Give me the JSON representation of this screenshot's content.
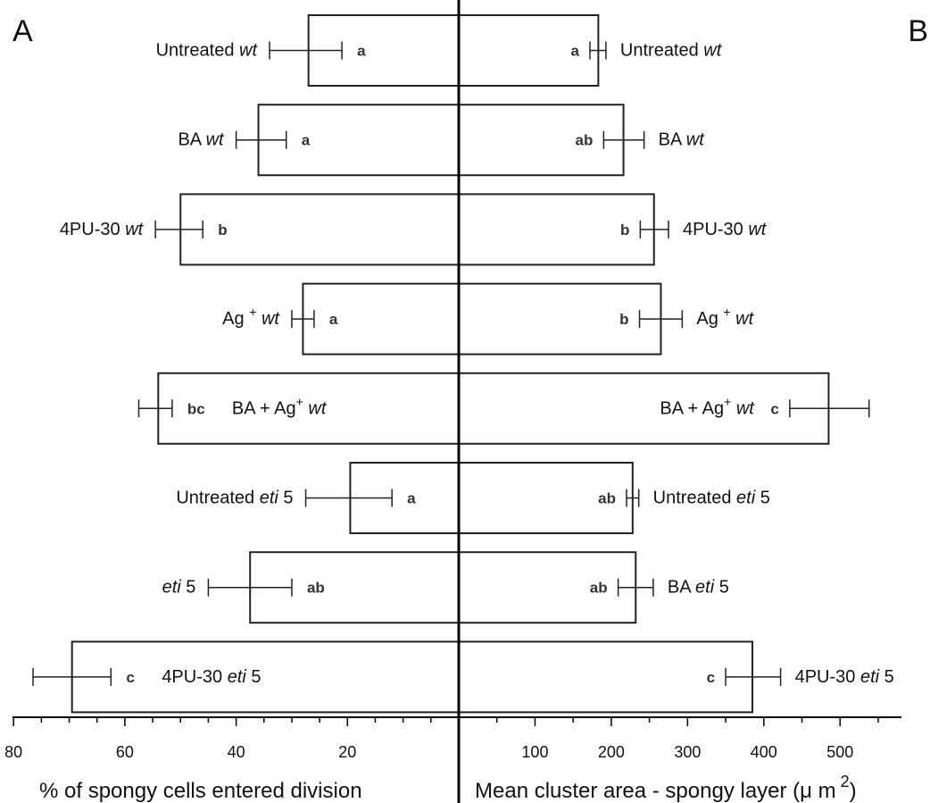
{
  "panels": {
    "left_letter": "A",
    "right_letter": "B"
  },
  "chart_data": [
    {
      "type": "bar",
      "orientation": "horizontal",
      "panel": "A",
      "xlabel": "% of spongy cells entered division",
      "xlim": [
        0,
        80
      ],
      "x_reversed": true,
      "xticks": [
        "80",
        "60",
        "40",
        "20"
      ],
      "categories": [
        {
          "text": "Untreated ",
          "italic": "wt",
          "suffix": ""
        },
        {
          "text": "BA ",
          "italic": "wt",
          "suffix": ""
        },
        {
          "text": "4PU-30 ",
          "italic": "wt",
          "suffix": ""
        },
        {
          "text": "Ag ",
          "sup": "+",
          "italic": "wt",
          "suffix": ""
        },
        {
          "text": "BA + Ag",
          "sup": "+",
          "italic": "wt",
          "suffix": ""
        },
        {
          "text": "Untreated ",
          "italic": "eti",
          "suffix": " 5"
        },
        {
          "text": "",
          "italic": "eti",
          "suffix": " 5"
        },
        {
          "text": "4PU-30 ",
          "italic": "eti",
          "suffix": " 5"
        }
      ],
      "values": [
        27,
        36,
        50,
        28,
        54,
        19.5,
        37.5,
        69.5
      ],
      "errors": [
        [
          21,
          34
        ],
        [
          31,
          40
        ],
        [
          46,
          54.5
        ],
        [
          26,
          30
        ],
        [
          51.5,
          57.5
        ],
        [
          12,
          27.5
        ],
        [
          30,
          45
        ],
        [
          62.5,
          76.5
        ]
      ],
      "significance": [
        "a",
        "a",
        "b",
        "a",
        "bc",
        "a",
        "ab",
        "c"
      ]
    },
    {
      "type": "bar",
      "orientation": "horizontal",
      "panel": "B",
      "xlabel": "Mean cluster area - spongy layer (μ m",
      "xlabel_sup": "2",
      "xlabel_close": ")",
      "xlim": [
        0,
        580
      ],
      "xticks": [
        "100",
        "200",
        "300",
        "400",
        "500"
      ],
      "categories": [
        {
          "text": "Untreated ",
          "italic": "wt",
          "suffix": ""
        },
        {
          "text": "BA ",
          "italic": "wt",
          "suffix": ""
        },
        {
          "text": "4PU-30 ",
          "italic": "wt",
          "suffix": ""
        },
        {
          "text": "Ag ",
          "sup": "+",
          "italic": "wt",
          "suffix": ""
        },
        {
          "text": "BA + Ag",
          "sup": "+",
          "italic": "wt",
          "suffix": ""
        },
        {
          "text": "Untreated ",
          "italic": "eti",
          "suffix": " 5"
        },
        {
          "text": "BA ",
          "italic": "eti",
          "suffix": " 5"
        },
        {
          "text": "4PU-30 ",
          "italic": "eti",
          "suffix": " 5"
        }
      ],
      "values": [
        183,
        216,
        256,
        265,
        485,
        228,
        232,
        385
      ],
      "errors": [
        [
          172,
          193
        ],
        [
          190,
          243
        ],
        [
          238,
          275
        ],
        [
          237,
          293
        ],
        [
          434,
          538
        ],
        [
          220,
          236
        ],
        [
          209,
          255
        ],
        [
          350,
          422
        ]
      ],
      "significance": [
        "a",
        "ab",
        "b",
        "b",
        "c",
        "ab",
        "ab",
        "c"
      ]
    }
  ]
}
